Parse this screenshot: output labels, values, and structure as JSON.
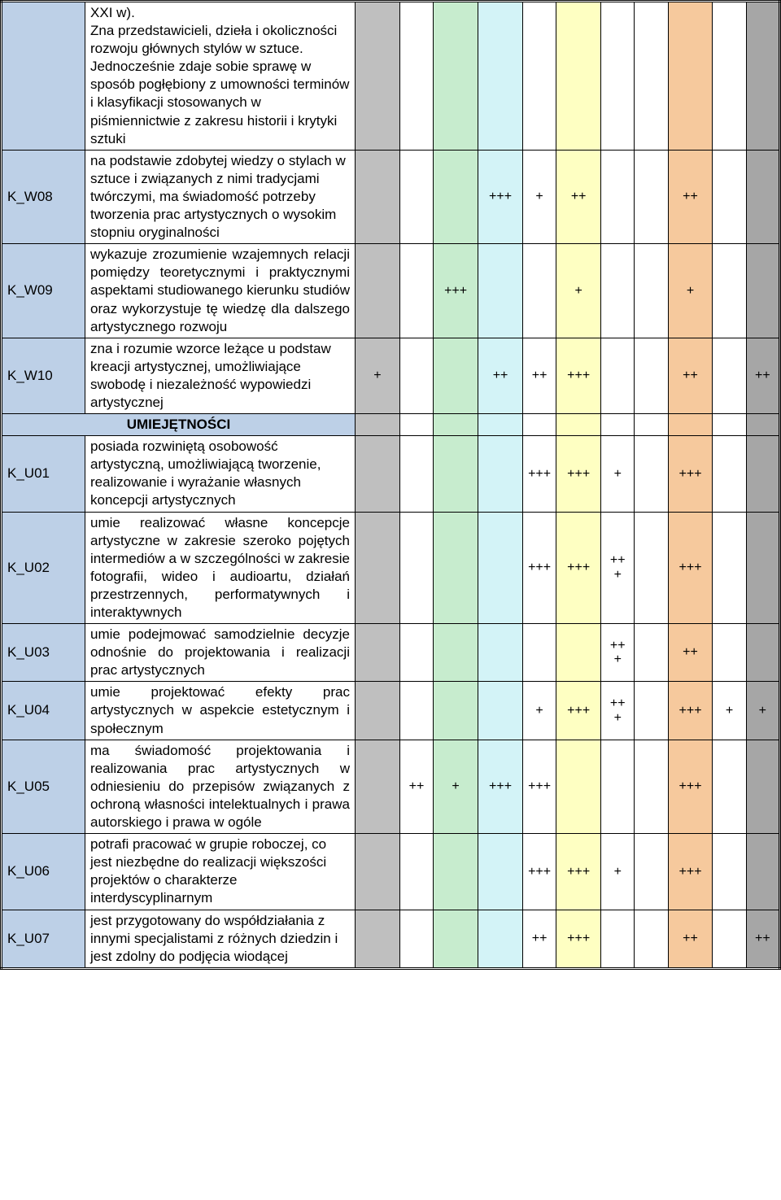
{
  "colors": {
    "code_bg": "#bdd0e7",
    "desc_bg": "#ffffff",
    "cols": [
      "#bfbfbf",
      "#ffffff",
      "#c7ecce",
      "#d3f3f7",
      "#ffffff",
      "#feffc2",
      "#ffffff",
      "#ffffff",
      "#f6c99d",
      "#ffffff",
      "#a6a6a6"
    ],
    "section_bg": "#bdd0e7"
  },
  "section_label": "UMIEJĘTNOŚCI",
  "rows": [
    {
      "code": "",
      "desc": "XXI w).\nZna przedstawicieli, dzieła i okoliczności rozwoju głównych stylów w sztuce.\nJednocześnie zdaje sobie sprawę w sposób pogłębiony z umowności terminów i klasyfikacji stosowanych w piśmiennictwie z zakresu historii i krytyki sztuki",
      "justify": false,
      "marks": [
        "",
        "",
        "",
        "",
        "",
        "",
        "",
        "",
        "",
        "",
        ""
      ]
    },
    {
      "code": "K_W08",
      "desc": "na podstawie zdobytej wiedzy o stylach w sztuce i związanych z nimi tradycjami twórczymi, ma świadomość potrzeby tworzenia prac artystycznych o wysokim stopniu oryginalności",
      "justify": false,
      "marks": [
        "",
        "",
        "",
        "+++",
        "+",
        "++",
        "",
        "",
        "++",
        "",
        ""
      ]
    },
    {
      "code": "K_W09",
      "desc": "wykazuje zrozumienie wzajemnych relacji pomiędzy teoretycznymi i praktycznymi aspektami studiowanego kierunku studiów oraz wykorzystuje tę wiedzę dla dalszego artystycznego rozwoju",
      "justify": true,
      "marks": [
        "",
        "",
        "+++",
        "",
        "",
        "+",
        "",
        "",
        "+",
        "",
        ""
      ]
    },
    {
      "code": "K_W10",
      "desc": "zna i rozumie wzorce leżące u podstaw kreacji artystycznej, umożliwiające swobodę i niezależność wypowiedzi artystycznej",
      "justify": false,
      "marks": [
        "+",
        "",
        "",
        "++",
        "++",
        "+++",
        "",
        "",
        "++",
        "",
        "++"
      ]
    },
    {
      "section": true
    },
    {
      "code": "K_U01",
      "desc": "posiada rozwiniętą osobowość artystyczną, umożliwiającą tworzenie, realizowanie i wyrażanie własnych koncepcji artystycznych",
      "justify": false,
      "marks": [
        "",
        "",
        "",
        "",
        "+++",
        "+++",
        "+",
        "",
        "+++",
        "",
        ""
      ]
    },
    {
      "code": "K_U02",
      "desc": "umie realizować własne koncepcje artystyczne w zakresie szeroko pojętych intermediów a w szczególności w zakresie fotografii, wideo i audioartu, działań przestrzennych, performatywnych i interaktywnych",
      "justify": true,
      "marks": [
        "",
        "",
        "",
        "",
        "+++",
        "+++",
        "+++",
        "",
        "+++",
        "",
        ""
      ]
    },
    {
      "code": "K_U03",
      "desc": "umie podejmować samodzielnie decyzje odnośnie do projektowania i realizacji prac artystycznych",
      "justify": true,
      "marks": [
        "",
        "",
        "",
        "",
        "",
        "",
        "+++",
        "",
        "++",
        "",
        ""
      ]
    },
    {
      "code": "K_U04",
      "desc": "umie projektować efekty prac artystycznych w aspekcie estetycznym i społecznym",
      "justify": true,
      "marks": [
        "",
        "",
        "",
        "",
        "+",
        "+++",
        "+++",
        "",
        "+++",
        "+",
        "+"
      ]
    },
    {
      "code": "K_U05",
      "desc": "ma świadomość projektowania i realizowania prac artystycznych w odniesieniu do przepisów związanych z ochroną własności intelektualnych i prawa autorskiego i prawa w ogóle",
      "justify": true,
      "marks": [
        "",
        "++",
        "+",
        "+++",
        "+++",
        "",
        "",
        "",
        "+++",
        "",
        ""
      ]
    },
    {
      "code": "K_U06",
      "desc": "potrafi pracować w grupie roboczej, co jest niezbędne do realizacji większości projektów o charakterze interdyscyplinarnym",
      "justify": false,
      "marks": [
        "",
        "",
        "",
        "",
        "+++",
        "+++",
        "+",
        "",
        "+++",
        "",
        ""
      ]
    },
    {
      "code": "K_U07",
      "desc": "jest przygotowany do współdziałania z innymi specjalistami z różnych dziedzin i jest zdolny do podjęcia wiodącej",
      "justify": false,
      "marks": [
        "",
        "",
        "",
        "",
        "++",
        "+++",
        "",
        "",
        "++",
        "",
        "++"
      ]
    }
  ]
}
